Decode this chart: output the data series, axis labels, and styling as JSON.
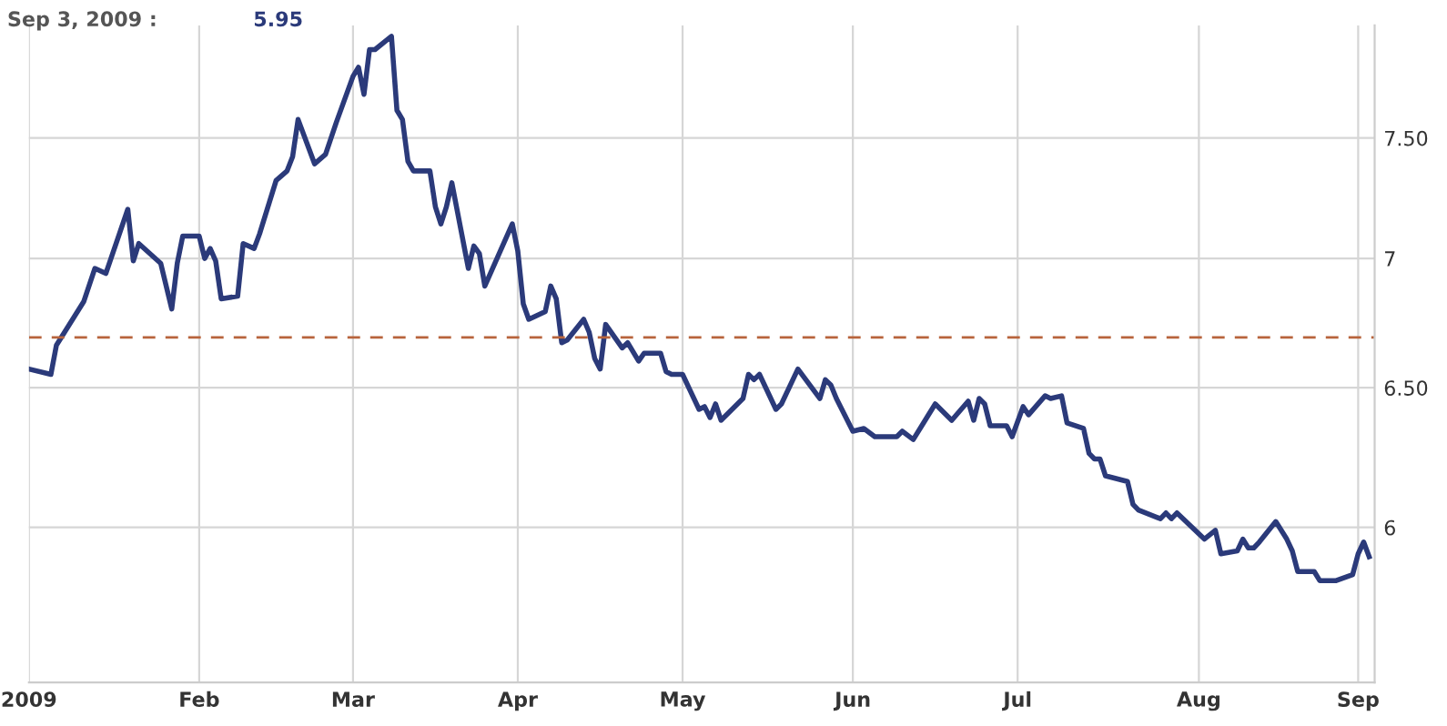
{
  "chart_data": {
    "type": "line",
    "title": "Sep 3, 2009 :",
    "annotations": [
      "5.95"
    ],
    "x": [
      "2009-01-02",
      "2009-01-06",
      "2009-01-07",
      "2009-01-12",
      "2009-01-14",
      "2009-01-16",
      "2009-01-20",
      "2009-01-21",
      "2009-01-22",
      "2009-01-26",
      "2009-01-28",
      "2009-01-29",
      "2009-01-30",
      "2009-02-02",
      "2009-02-03",
      "2009-02-04",
      "2009-02-05",
      "2009-02-06",
      "2009-02-09",
      "2009-02-10",
      "2009-02-12",
      "2009-02-13",
      "2009-02-16",
      "2009-02-18",
      "2009-02-19",
      "2009-02-20",
      "2009-02-23",
      "2009-02-25",
      "2009-02-27",
      "2009-03-02",
      "2009-03-03",
      "2009-03-04",
      "2009-03-05",
      "2009-03-06",
      "2009-03-09",
      "2009-03-10",
      "2009-03-11",
      "2009-03-12",
      "2009-03-13",
      "2009-03-16",
      "2009-03-17",
      "2009-03-18",
      "2009-03-19",
      "2009-03-20",
      "2009-03-23",
      "2009-03-24",
      "2009-03-25",
      "2009-03-26",
      "2009-03-31",
      "2009-04-01",
      "2009-04-02",
      "2009-04-03",
      "2009-04-06",
      "2009-04-07",
      "2009-04-08",
      "2009-04-09",
      "2009-04-10",
      "2009-04-13",
      "2009-04-14",
      "2009-04-15",
      "2009-04-16",
      "2009-04-17",
      "2009-04-20",
      "2009-04-21",
      "2009-04-23",
      "2009-04-24",
      "2009-04-27",
      "2009-04-28",
      "2009-04-29",
      "2009-05-01",
      "2009-05-04",
      "2009-05-05",
      "2009-05-06",
      "2009-05-07",
      "2009-05-08",
      "2009-05-12",
      "2009-05-13",
      "2009-05-14",
      "2009-05-15",
      "2009-05-18",
      "2009-05-19",
      "2009-05-22",
      "2009-05-26",
      "2009-05-27",
      "2009-05-28",
      "2009-05-29",
      "2009-06-01",
      "2009-06-03",
      "2009-06-05",
      "2009-06-09",
      "2009-06-10",
      "2009-06-12",
      "2009-06-16",
      "2009-06-19",
      "2009-06-22",
      "2009-06-23",
      "2009-06-24",
      "2009-06-25",
      "2009-06-26",
      "2009-06-29",
      "2009-06-30",
      "2009-07-02",
      "2009-07-03",
      "2009-07-06",
      "2009-07-07",
      "2009-07-09",
      "2009-07-10",
      "2009-07-13",
      "2009-07-14",
      "2009-07-15",
      "2009-07-16",
      "2009-07-17",
      "2009-07-21",
      "2009-07-22",
      "2009-07-23",
      "2009-07-27",
      "2009-07-28",
      "2009-07-29",
      "2009-07-30",
      "2009-08-04",
      "2009-08-06",
      "2009-08-07",
      "2009-08-10",
      "2009-08-11",
      "2009-08-12",
      "2009-08-13",
      "2009-08-14",
      "2009-08-17",
      "2009-08-19",
      "2009-08-20",
      "2009-08-21",
      "2009-08-24",
      "2009-08-25",
      "2009-08-28",
      "2009-08-31",
      "2009-09-01",
      "2009-09-02",
      "2009-09-03"
    ],
    "series": [
      {
        "color": "#2b3a7a",
        "values": [
          6.57,
          6.55,
          6.66,
          6.83,
          6.96,
          6.94,
          7.2,
          6.99,
          7.06,
          6.98,
          6.8,
          6.98,
          7.09,
          7.09,
          7.0,
          7.04,
          6.99,
          6.84,
          6.85,
          7.06,
          7.04,
          7.1,
          7.32,
          7.36,
          7.42,
          7.58,
          7.39,
          7.43,
          7.57,
          7.77,
          7.81,
          7.69,
          7.89,
          7.89,
          7.95,
          7.62,
          7.58,
          7.4,
          7.36,
          7.36,
          7.21,
          7.14,
          7.21,
          7.31,
          6.96,
          7.05,
          7.02,
          6.89,
          7.14,
          7.03,
          6.82,
          6.76,
          6.79,
          6.89,
          6.84,
          6.67,
          6.68,
          6.76,
          6.71,
          6.61,
          6.57,
          6.74,
          6.65,
          6.67,
          6.6,
          6.63,
          6.63,
          6.56,
          6.55,
          6.55,
          6.42,
          6.43,
          6.39,
          6.44,
          6.38,
          6.46,
          6.55,
          6.53,
          6.55,
          6.42,
          6.44,
          6.57,
          6.46,
          6.53,
          6.51,
          6.46,
          6.34,
          6.35,
          6.32,
          6.32,
          6.34,
          6.31,
          6.44,
          6.38,
          6.45,
          6.38,
          6.46,
          6.44,
          6.36,
          6.36,
          6.32,
          6.43,
          6.4,
          6.47,
          6.46,
          6.47,
          6.37,
          6.35,
          6.26,
          6.24,
          6.24,
          6.18,
          6.16,
          6.08,
          6.06,
          6.03,
          6.05,
          6.03,
          6.05,
          5.96,
          5.99,
          5.91,
          5.92,
          5.96,
          5.93,
          5.93,
          5.95,
          6.02,
          5.96,
          5.92,
          5.85,
          5.85,
          5.82,
          5.82,
          5.84,
          5.91,
          5.95,
          5.9
        ]
      }
    ],
    "xlim": [
      "2009-01-02",
      "2009-09-04"
    ],
    "xticks": [
      {
        "value": "2009-01-02",
        "label": "2009"
      },
      {
        "value": "2009-02-02",
        "label": "Feb"
      },
      {
        "value": "2009-03-02",
        "label": "Mar"
      },
      {
        "value": "2009-04-01",
        "label": "Apr"
      },
      {
        "value": "2009-05-01",
        "label": "May"
      },
      {
        "value": "2009-06-01",
        "label": "Jun"
      },
      {
        "value": "2009-07-01",
        "label": "Jul"
      },
      {
        "value": "2009-08-03",
        "label": "Aug"
      },
      {
        "value": "2009-09-01",
        "label": "Sep"
      }
    ],
    "log": true,
    "ylim": [
      5.49,
      8.0
    ],
    "yticks": [
      6,
      {
        "value": 6.5,
        "label": "6.50"
      },
      7,
      {
        "value": 7.5,
        "label": "7.50"
      }
    ],
    "ref_lines": [
      {
        "axis": "y",
        "value": 6.69,
        "color": "#b8643c",
        "line_style": "dashed"
      }
    ],
    "grid": true,
    "line_style": "solid",
    "legend": false
  }
}
